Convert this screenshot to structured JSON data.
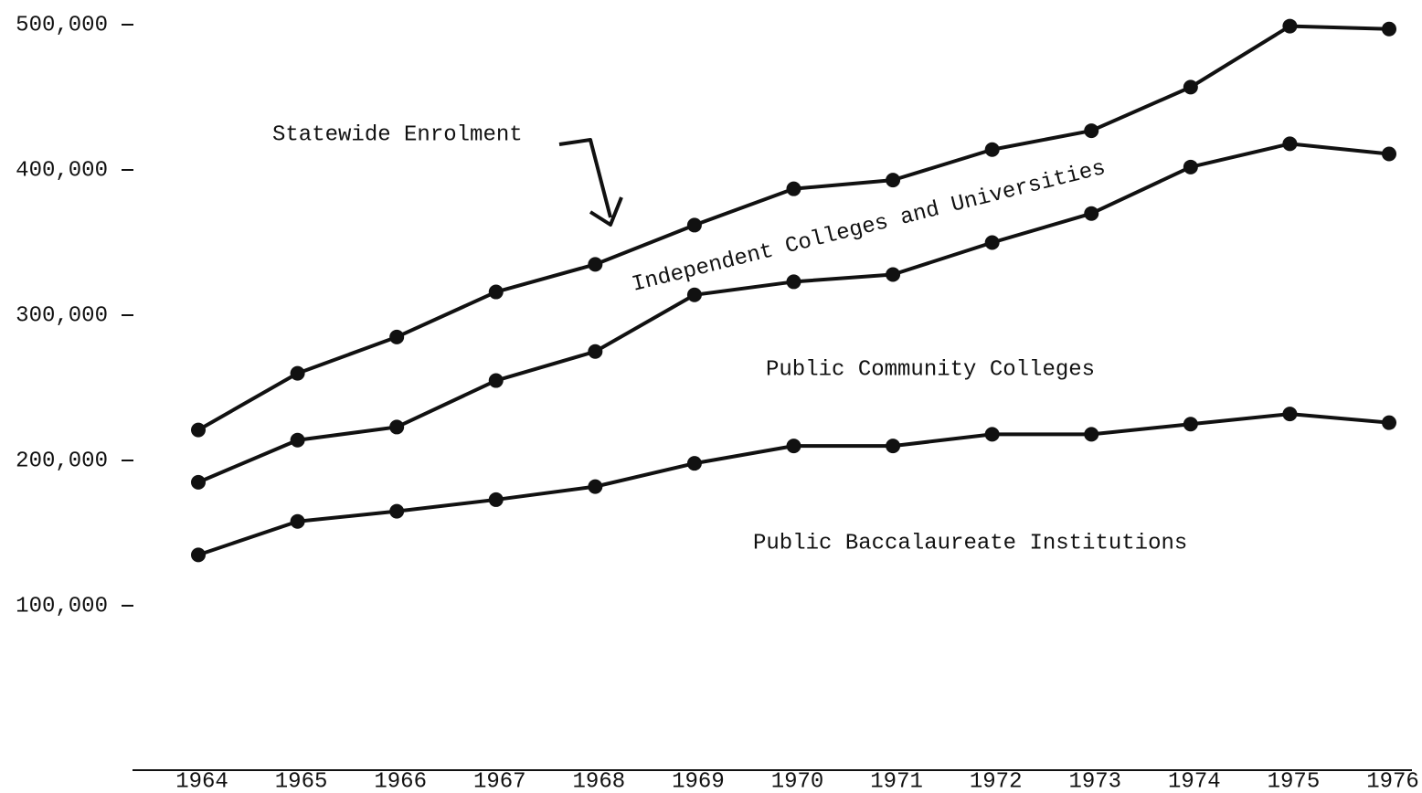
{
  "chart_data": {
    "type": "line",
    "categories": [
      "1964",
      "1965",
      "1966",
      "1967",
      "1968",
      "1969",
      "1970",
      "1971",
      "1972",
      "1973",
      "1974",
      "1975",
      "1976"
    ],
    "series": [
      {
        "name": "Statewide Enrolment",
        "color": "#111111",
        "values": [
          221000,
          260000,
          285000,
          316000,
          335000,
          362000,
          387000,
          393000,
          414000,
          427000,
          457000,
          499000,
          497000
        ]
      },
      {
        "color": "#111111",
        "values": [
          185000,
          214000,
          223000,
          255000,
          275000,
          314000,
          323000,
          328000,
          350000,
          370000,
          402000,
          418000,
          411000
        ]
      },
      {
        "color": "#111111",
        "values": [
          135000,
          158000,
          165000,
          173000,
          182000,
          198000,
          210000,
          210000,
          218000,
          218000,
          225000,
          232000,
          226000
        ]
      }
    ],
    "annotations": [
      "Independent Colleges and Universities",
      "Public Community Colleges",
      "Public Baccalaureate Institutions"
    ],
    "ylim": [
      0,
      500000
    ],
    "yticks": [
      {
        "value": 100000,
        "label": "100,000"
      },
      {
        "value": 200000,
        "label": "200,000"
      },
      {
        "value": 300000,
        "label": "300,000"
      },
      {
        "value": 400000,
        "label": "400,000"
      },
      {
        "value": 500000,
        "label": "500,000"
      }
    ]
  }
}
